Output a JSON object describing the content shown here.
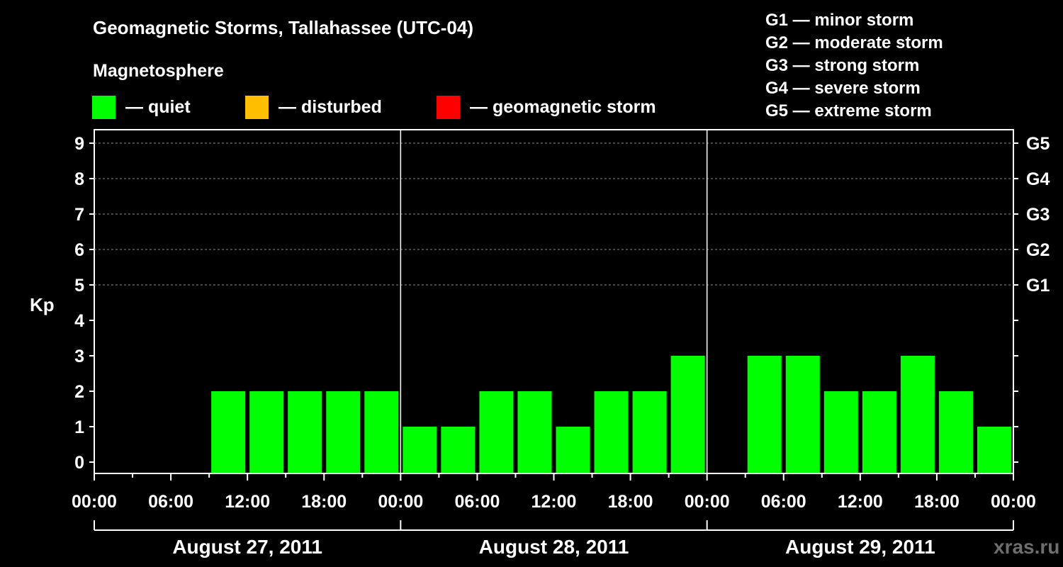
{
  "title": "Geomagnetic Storms, Tallahassee (UTC-04)",
  "magnetosphere": {
    "title": "Magnetosphere",
    "items": [
      {
        "label": "— quiet",
        "color": "#00ff00"
      },
      {
        "label": "— disturbed",
        "color": "#ffbf00"
      },
      {
        "label": "— geomagnetic storm",
        "color": "#ff0000"
      }
    ]
  },
  "storm_scale": [
    "G1 — minor storm",
    "G2 — moderate storm",
    "G3 — strong storm",
    "G4 — severe storm",
    "G5 — extreme storm"
  ],
  "watermark": "xras.ru",
  "chart_data": {
    "type": "bar",
    "ylabel": "Kp",
    "ylim": [
      0,
      9
    ],
    "yticks": [
      "0",
      "1",
      "2",
      "3",
      "4",
      "5",
      "6",
      "7",
      "8",
      "9"
    ],
    "right_ticks": [
      {
        "kp": 5,
        "label": "G1"
      },
      {
        "kp": 6,
        "label": "G2"
      },
      {
        "kp": 7,
        "label": "G3"
      },
      {
        "kp": 8,
        "label": "G4"
      },
      {
        "kp": 9,
        "label": "G5"
      }
    ],
    "grid": "dashed horizontal at Kp 5-9",
    "xticks": [
      "00:00",
      "06:00",
      "12:00",
      "18:00",
      "00:00",
      "06:00",
      "12:00",
      "18:00",
      "00:00",
      "06:00",
      "12:00",
      "18:00",
      "00:00"
    ],
    "days": [
      "August 27, 2011",
      "August 28, 2011",
      "August 29, 2011"
    ],
    "bar_color": "#00ff00",
    "series": [
      {
        "day": "August 27, 2011",
        "values": [
          null,
          null,
          null,
          2,
          2,
          2,
          2,
          2
        ]
      },
      {
        "day": "August 28, 2011",
        "values": [
          1,
          1,
          2,
          2,
          1,
          2,
          2,
          3
        ]
      },
      {
        "day": "August 29, 2011",
        "values": [
          null,
          3,
          3,
          2,
          2,
          3,
          2,
          1
        ]
      }
    ]
  }
}
